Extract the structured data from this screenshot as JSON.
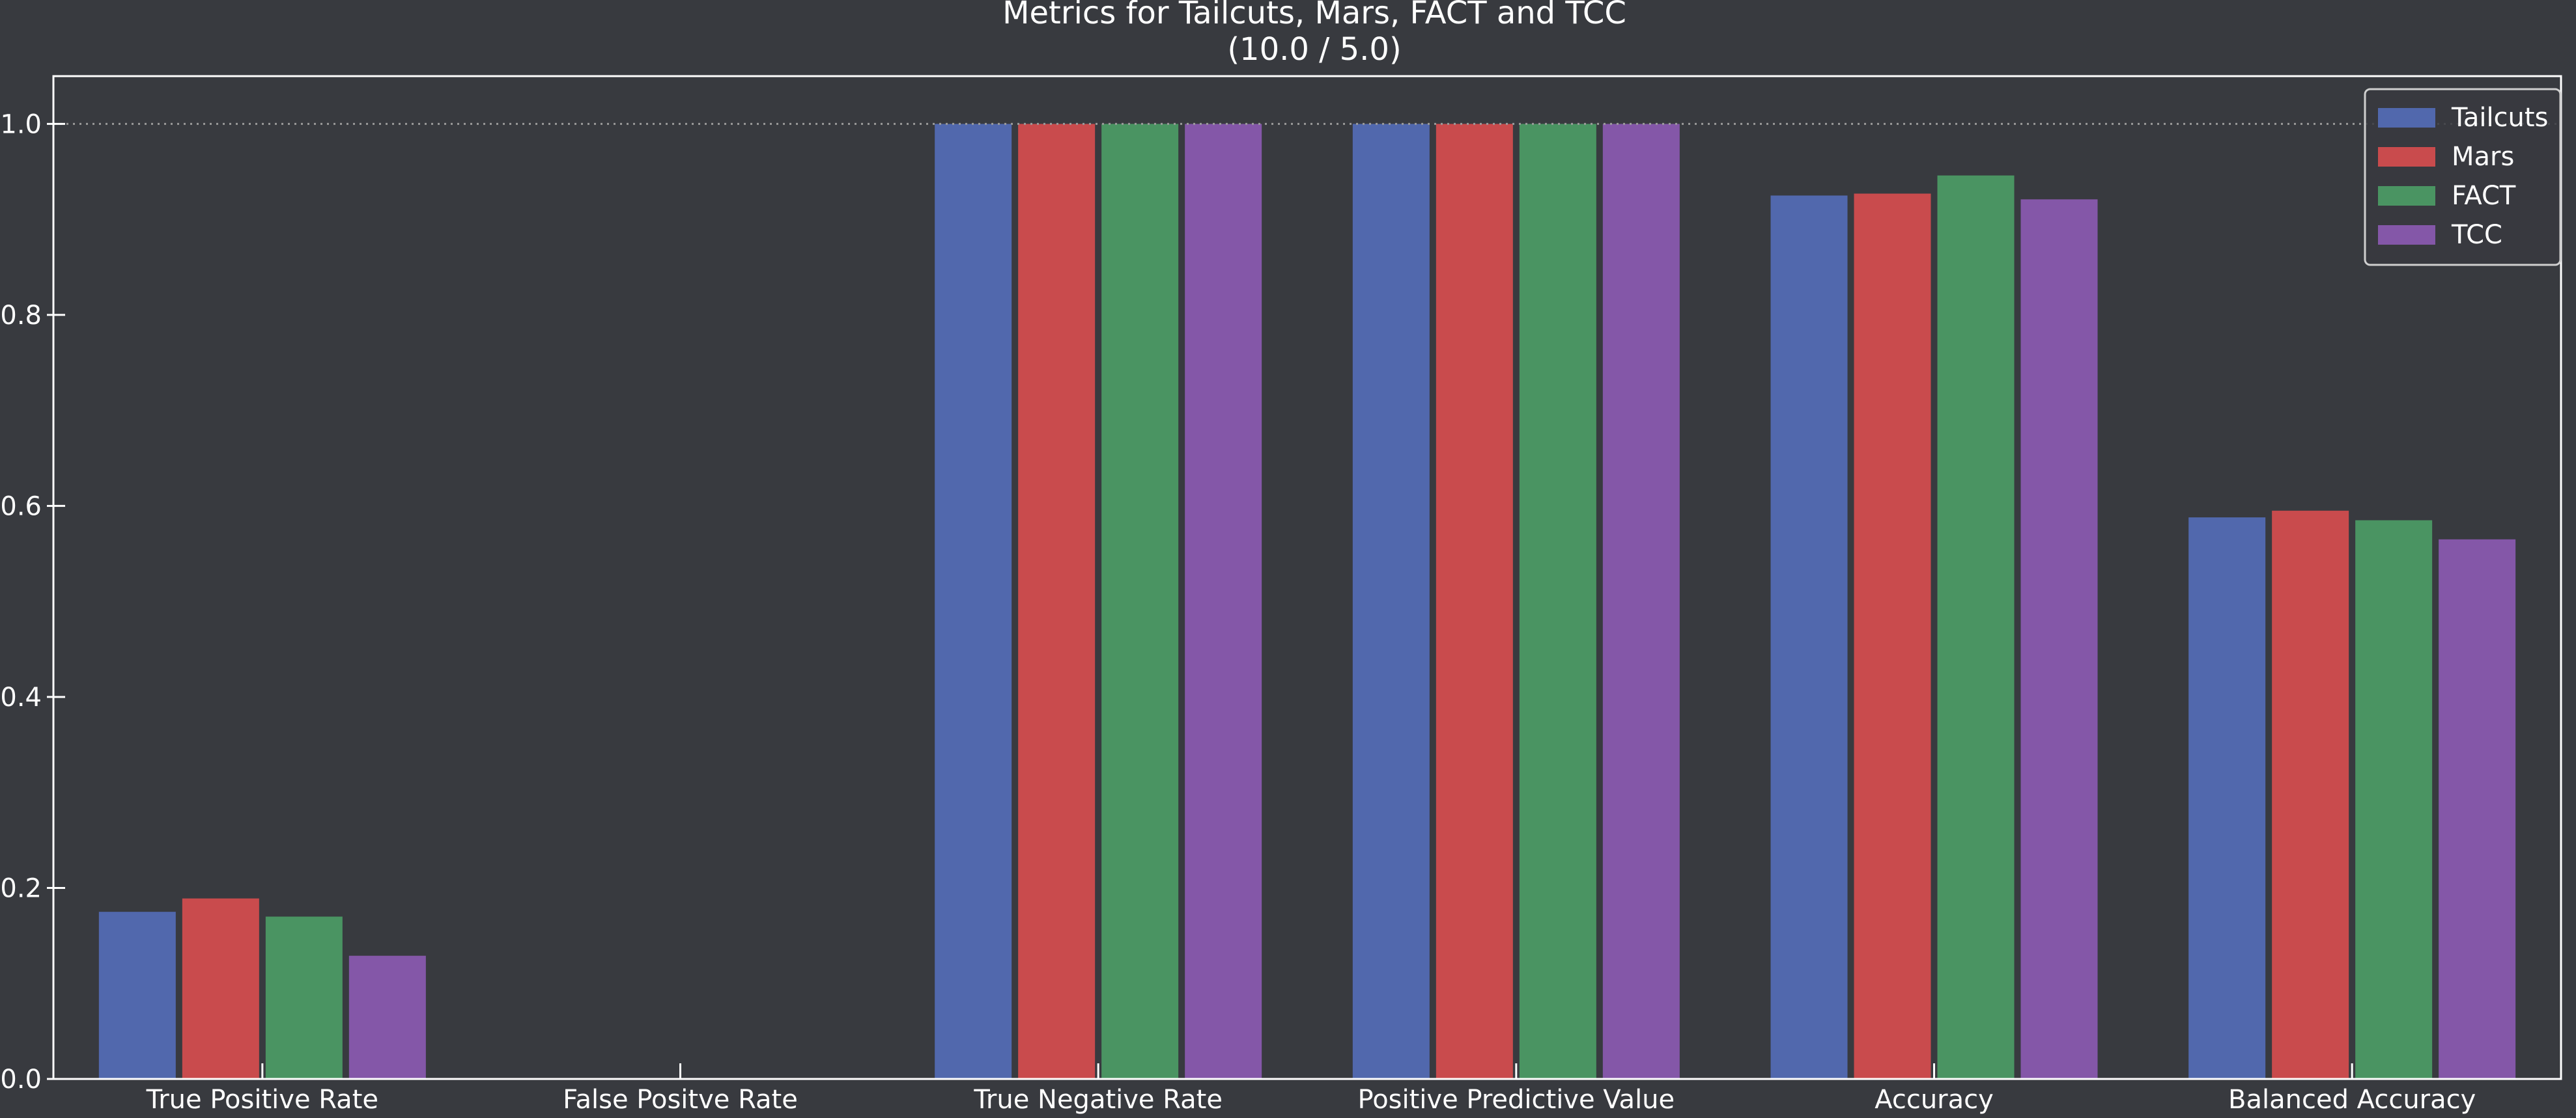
{
  "chart_data": {
    "type": "bar",
    "title": "Metrics for Tailcuts, Mars, FACT and TCC",
    "subtitle": "(10.0 / 5.0)",
    "xlabel": "",
    "ylabel": "",
    "categories": [
      "True Positive Rate",
      "False Positve Rate",
      "True Negative Rate",
      "Positive Predictive Value",
      "Accuracy",
      "Balanced Accuracy"
    ],
    "series": [
      {
        "name": "Tailcuts",
        "color": "#5168ad",
        "values": [
          0.175,
          0.0,
          1.0,
          1.0,
          0.925,
          0.588
        ]
      },
      {
        "name": "Mars",
        "color": "#c94b4d",
        "values": [
          0.189,
          0.0,
          1.0,
          1.0,
          0.927,
          0.595
        ]
      },
      {
        "name": "FACT",
        "color": "#4a9462",
        "values": [
          0.17,
          0.0,
          1.0,
          1.0,
          0.946,
          0.585
        ]
      },
      {
        "name": "TCC",
        "color": "#8457a8",
        "values": [
          0.129,
          0.0,
          1.0,
          1.0,
          0.921,
          0.565
        ]
      }
    ],
    "ylim": [
      0.0,
      1.05
    ],
    "yticks": [
      "0.0",
      "0.2",
      "0.4",
      "0.6",
      "0.8",
      "1.0"
    ],
    "reference_line": 1.0,
    "grid": false,
    "legend_position": "top-right",
    "colors": {
      "background": "#383a3f",
      "axes": "#ffffff",
      "text": "#ffffff",
      "reference_line": "#9a9a9a"
    }
  }
}
